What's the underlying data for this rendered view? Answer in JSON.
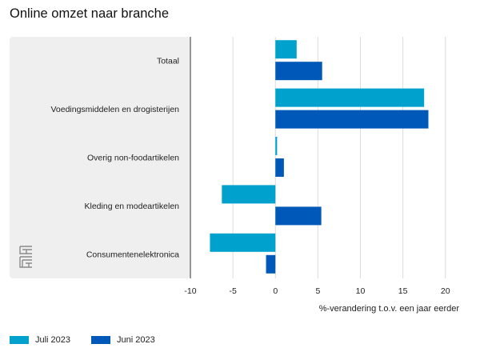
{
  "chart_data": {
    "type": "bar",
    "orientation": "horizontal",
    "title": "Online omzet naar branche",
    "xlabel": "%-verandering t.o.v. een jaar eerder",
    "xlim": [
      -10,
      22
    ],
    "xticks": [
      -10,
      -5,
      0,
      5,
      10,
      15,
      20
    ],
    "grid": true,
    "legend_position": "bottom-left",
    "categories": [
      "Totaal",
      "Voedingsmiddelen en drogisterijen",
      "Overig non-foodartikelen",
      "Kleding en modeartikelen",
      "Consumentenelektronica"
    ],
    "series": [
      {
        "name": "Juli 2023",
        "color": "#00a1cd",
        "values": [
          2.5,
          17.5,
          0.2,
          -6.3,
          -7.7
        ]
      },
      {
        "name": "Juni 2023",
        "color": "#0058b8",
        "values": [
          5.5,
          18.0,
          1.0,
          5.4,
          -1.1
        ]
      }
    ]
  },
  "logo": {
    "icon": "cbs-logo-icon"
  }
}
